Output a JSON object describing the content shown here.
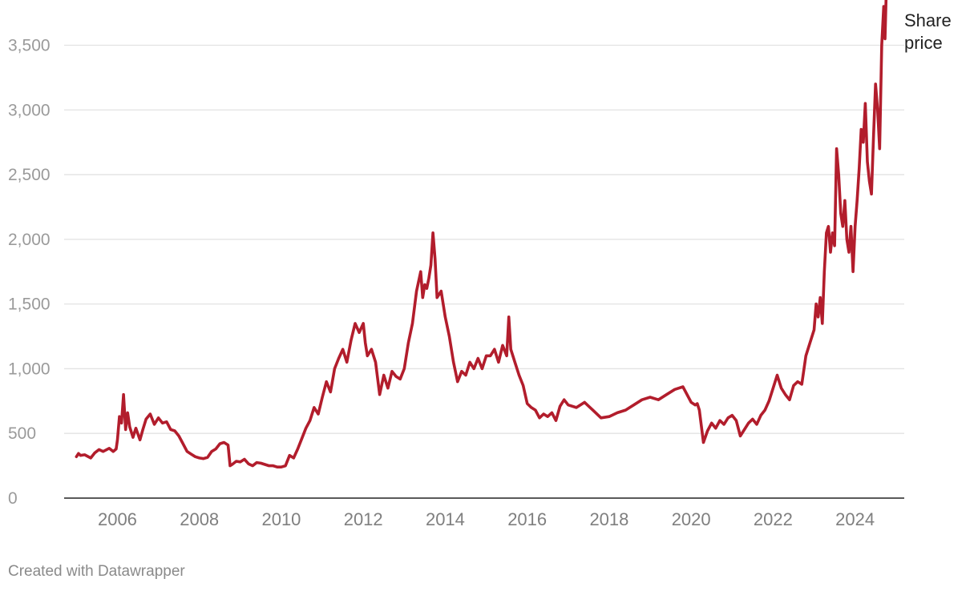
{
  "footer": {
    "credit": "Created with Datawrapper"
  },
  "colors": {
    "line": "#b21d2c",
    "grid": "#e2e2e2",
    "baseline": "#222222"
  },
  "chart_data": {
    "type": "line",
    "x_axis": {
      "type": "year",
      "ticks": [
        2006,
        2008,
        2010,
        2012,
        2014,
        2016,
        2018,
        2020,
        2022,
        2024
      ],
      "xlim": [
        2004.7,
        2025.2
      ]
    },
    "y_axis": {
      "ylim": [
        0,
        3800
      ],
      "ticks": [
        0,
        500,
        1000,
        1500,
        2000,
        2500,
        3000,
        3500
      ],
      "tick_labels": [
        "0",
        "500",
        "1,000",
        "1,500",
        "2,000",
        "2,500",
        "3,000",
        "3,500"
      ]
    },
    "grid": true,
    "series": [
      {
        "name": "Share price",
        "label_lines": [
          "Share",
          "price"
        ],
        "color": "#b21d2c",
        "x": [
          2005.0,
          2005.05,
          2005.1,
          2005.2,
          2005.35,
          2005.45,
          2005.55,
          2005.65,
          2005.8,
          2005.9,
          2005.97,
          2006.0,
          2006.05,
          2006.1,
          2006.15,
          2006.2,
          2006.25,
          2006.3,
          2006.38,
          2006.45,
          2006.55,
          2006.62,
          2006.7,
          2006.8,
          2006.9,
          2007.0,
          2007.1,
          2007.2,
          2007.3,
          2007.4,
          2007.5,
          2007.6,
          2007.7,
          2007.8,
          2007.9,
          2008.0,
          2008.1,
          2008.2,
          2008.3,
          2008.4,
          2008.5,
          2008.6,
          2008.7,
          2008.75,
          2008.8,
          2008.9,
          2009.0,
          2009.1,
          2009.2,
          2009.3,
          2009.4,
          2009.5,
          2009.6,
          2009.7,
          2009.8,
          2009.9,
          2010.0,
          2010.1,
          2010.2,
          2010.3,
          2010.4,
          2010.5,
          2010.6,
          2010.7,
          2010.8,
          2010.9,
          2011.0,
          2011.1,
          2011.2,
          2011.3,
          2011.4,
          2011.5,
          2011.6,
          2011.7,
          2011.8,
          2011.9,
          2012.0,
          2012.05,
          2012.1,
          2012.2,
          2012.3,
          2012.4,
          2012.5,
          2012.6,
          2012.7,
          2012.8,
          2012.9,
          2013.0,
          2013.1,
          2013.2,
          2013.3,
          2013.4,
          2013.45,
          2013.5,
          2013.55,
          2013.6,
          2013.65,
          2013.7,
          2013.75,
          2013.8,
          2013.9,
          2014.0,
          2014.1,
          2014.2,
          2014.3,
          2014.4,
          2014.5,
          2014.6,
          2014.7,
          2014.8,
          2014.9,
          2015.0,
          2015.1,
          2015.2,
          2015.3,
          2015.4,
          2015.5,
          2015.55,
          2015.6,
          2015.7,
          2015.8,
          2015.9,
          2016.0,
          2016.1,
          2016.2,
          2016.3,
          2016.4,
          2016.5,
          2016.6,
          2016.7,
          2016.8,
          2016.9,
          2017.0,
          2017.2,
          2017.4,
          2017.6,
          2017.8,
          2018.0,
          2018.2,
          2018.4,
          2018.6,
          2018.8,
          2019.0,
          2019.2,
          2019.4,
          2019.6,
          2019.8,
          2020.0,
          2020.1,
          2020.15,
          2020.2,
          2020.3,
          2020.4,
          2020.5,
          2020.6,
          2020.7,
          2020.8,
          2020.9,
          2021.0,
          2021.1,
          2021.2,
          2021.3,
          2021.4,
          2021.5,
          2021.6,
          2021.7,
          2021.8,
          2021.9,
          2022.0,
          2022.1,
          2022.2,
          2022.3,
          2022.4,
          2022.5,
          2022.6,
          2022.7,
          2022.8,
          2022.9,
          2023.0,
          2023.05,
          2023.1,
          2023.15,
          2023.2,
          2023.25,
          2023.3,
          2023.35,
          2023.4,
          2023.45,
          2023.5,
          2023.55,
          2023.6,
          2023.65,
          2023.7,
          2023.75,
          2023.8,
          2023.85,
          2023.9,
          2023.95,
          2024.0,
          2024.05,
          2024.1,
          2024.15,
          2024.2,
          2024.25,
          2024.3,
          2024.35,
          2024.4,
          2024.45,
          2024.5,
          2024.55,
          2024.6,
          2024.65,
          2024.7,
          2024.73,
          2024.76
        ],
        "values": [
          320,
          345,
          330,
          335,
          310,
          350,
          375,
          360,
          385,
          360,
          380,
          450,
          630,
          580,
          800,
          530,
          660,
          550,
          470,
          540,
          450,
          530,
          610,
          650,
          570,
          620,
          580,
          590,
          530,
          520,
          480,
          420,
          360,
          340,
          320,
          310,
          305,
          315,
          360,
          380,
          420,
          430,
          410,
          250,
          260,
          285,
          280,
          300,
          265,
          250,
          275,
          270,
          260,
          250,
          250,
          240,
          240,
          250,
          330,
          310,
          380,
          460,
          540,
          600,
          700,
          650,
          780,
          900,
          820,
          1000,
          1080,
          1150,
          1050,
          1220,
          1350,
          1280,
          1350,
          1200,
          1100,
          1150,
          1050,
          800,
          950,
          850,
          980,
          940,
          920,
          1000,
          1200,
          1350,
          1600,
          1750,
          1550,
          1650,
          1620,
          1700,
          1800,
          2050,
          1850,
          1550,
          1600,
          1400,
          1250,
          1050,
          900,
          980,
          950,
          1050,
          1000,
          1080,
          1000,
          1100,
          1100,
          1150,
          1050,
          1180,
          1100,
          1400,
          1150,
          1050,
          950,
          870,
          730,
          700,
          680,
          620,
          650,
          630,
          660,
          600,
          710,
          760,
          720,
          700,
          740,
          680,
          620,
          630,
          660,
          680,
          720,
          760,
          780,
          760,
          800,
          840,
          860,
          740,
          720,
          730,
          680,
          430,
          520,
          580,
          540,
          600,
          570,
          620,
          640,
          600,
          480,
          530,
          580,
          610,
          570,
          640,
          680,
          750,
          850,
          950,
          850,
          800,
          760,
          870,
          900,
          880,
          1100,
          1200,
          1300,
          1500,
          1400,
          1550,
          1350,
          1750,
          2050,
          2100,
          1900,
          2050,
          1950,
          2700,
          2500,
          2200,
          2100,
          2300,
          2000,
          1900,
          2100,
          1750,
          2100,
          2300,
          2550,
          2850,
          2750,
          3050,
          2600,
          2450,
          2350,
          2800,
          3200,
          3000,
          2700,
          3500,
          3800,
          3550,
          3900
        ]
      }
    ]
  }
}
